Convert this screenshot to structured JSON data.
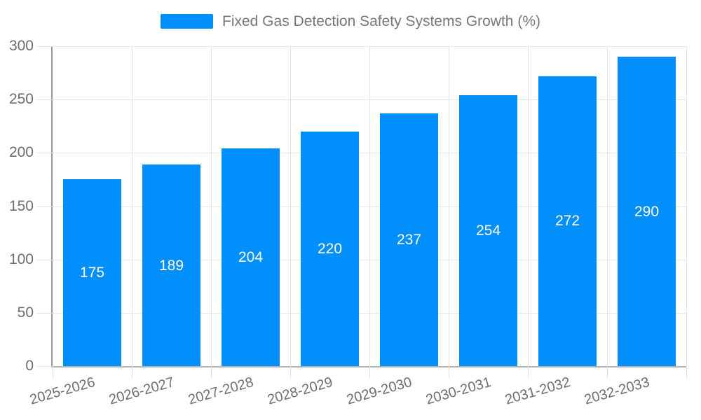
{
  "legend": {
    "label": "Fixed Gas Detection Safety Systems Growth (%)"
  },
  "chart_data": {
    "type": "bar",
    "title": "Fixed Gas Detection Safety Systems Growth (%)",
    "categories": [
      "2025-2026",
      "2026-2027",
      "2027-2028",
      "2028-2029",
      "2029-2030",
      "2030-2031",
      "2031-2032",
      "2032-2033"
    ],
    "values": [
      175,
      189,
      204,
      220,
      237,
      254,
      272,
      290
    ],
    "xlabel": "",
    "ylabel": "",
    "ylim": [
      0,
      300
    ],
    "yticks": [
      0,
      50,
      100,
      150,
      200,
      250,
      300
    ],
    "grid": true,
    "legend_position": "top",
    "data_labels": "inside-center"
  },
  "colors": {
    "bar": "#008FFB",
    "data_label": "#ffffff",
    "grid_line": "#e8e8e8",
    "axis_line": "#979797",
    "tick_line": "#e0e0e0",
    "axis_label": "#6b6f71",
    "legend_text": "#74787b"
  }
}
